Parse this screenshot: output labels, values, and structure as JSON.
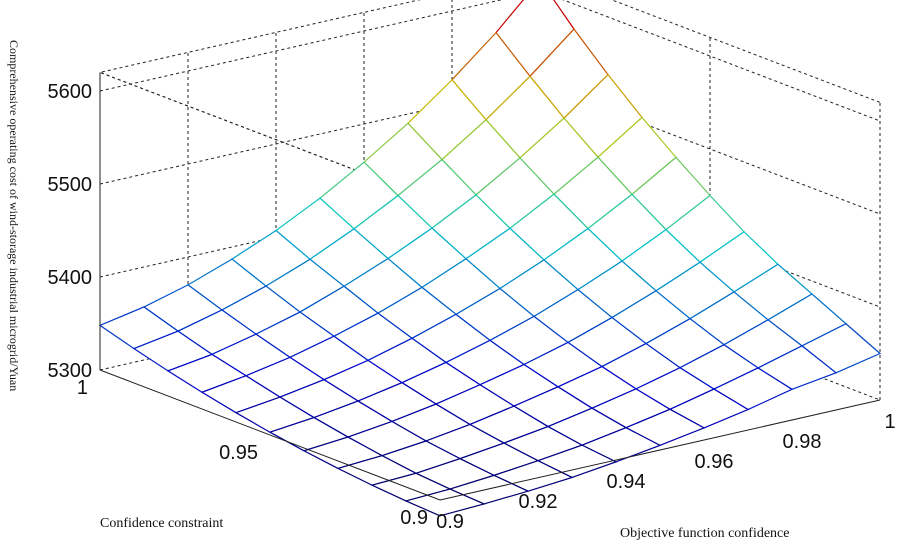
{
  "chart_data": {
    "type": "surface",
    "title": "",
    "xlabel": "Objective function confidence",
    "ylabel": "Confidence constraint",
    "zlabel": "Comprehensive operating cost of wind-storage industrial microgrid/Yuan",
    "x_ticks": [
      "0.9",
      "0.92",
      "0.94",
      "0.96",
      "0.98",
      "1"
    ],
    "y_ticks": [
      "0.9",
      "0.95",
      "1"
    ],
    "z_ticks": [
      "5300",
      "5400",
      "5500",
      "5600"
    ],
    "xlim": [
      0.9,
      1.0
    ],
    "ylim": [
      0.9,
      1.0
    ],
    "zlim": [
      5300,
      5600
    ],
    "grid": true,
    "colormap": "jet",
    "x": [
      0.9,
      0.91,
      0.92,
      0.93,
      0.94,
      0.95,
      0.96,
      0.97,
      0.98,
      0.99,
      1.0
    ],
    "y": [
      0.9,
      0.91,
      0.92,
      0.93,
      0.94,
      0.95,
      0.96,
      0.97,
      0.98,
      0.99,
      1.0
    ],
    "z": [
      [
        5283,
        5285,
        5288,
        5292,
        5298,
        5305,
        5313,
        5322,
        5333,
        5340,
        5350
      ],
      [
        5285,
        5287,
        5291,
        5296,
        5302,
        5310,
        5319,
        5330,
        5342,
        5355,
        5368
      ],
      [
        5288,
        5290,
        5295,
        5301,
        5308,
        5317,
        5327,
        5339,
        5353,
        5369,
        5386
      ],
      [
        5292,
        5295,
        5300,
        5307,
        5316,
        5326,
        5337,
        5351,
        5367,
        5385,
        5404
      ],
      [
        5297,
        5301,
        5307,
        5315,
        5325,
        5336,
        5349,
        5365,
        5383,
        5403,
        5425
      ],
      [
        5303,
        5308,
        5315,
        5324,
        5335,
        5348,
        5363,
        5381,
        5401,
        5424,
        5450
      ],
      [
        5310,
        5316,
        5324,
        5334,
        5347,
        5362,
        5379,
        5399,
        5422,
        5448,
        5477
      ],
      [
        5318,
        5325,
        5334,
        5346,
        5360,
        5377,
        5397,
        5419,
        5445,
        5474,
        5506
      ],
      [
        5327,
        5334,
        5345,
        5358,
        5375,
        5394,
        5416,
        5441,
        5470,
        5502,
        5538
      ],
      [
        5337,
        5345,
        5357,
        5372,
        5390,
        5412,
        5437,
        5465,
        5497,
        5533,
        5573
      ],
      [
        5348,
        5357,
        5370,
        5387,
        5407,
        5431,
        5459,
        5490,
        5526,
        5566,
        5612
      ]
    ]
  }
}
